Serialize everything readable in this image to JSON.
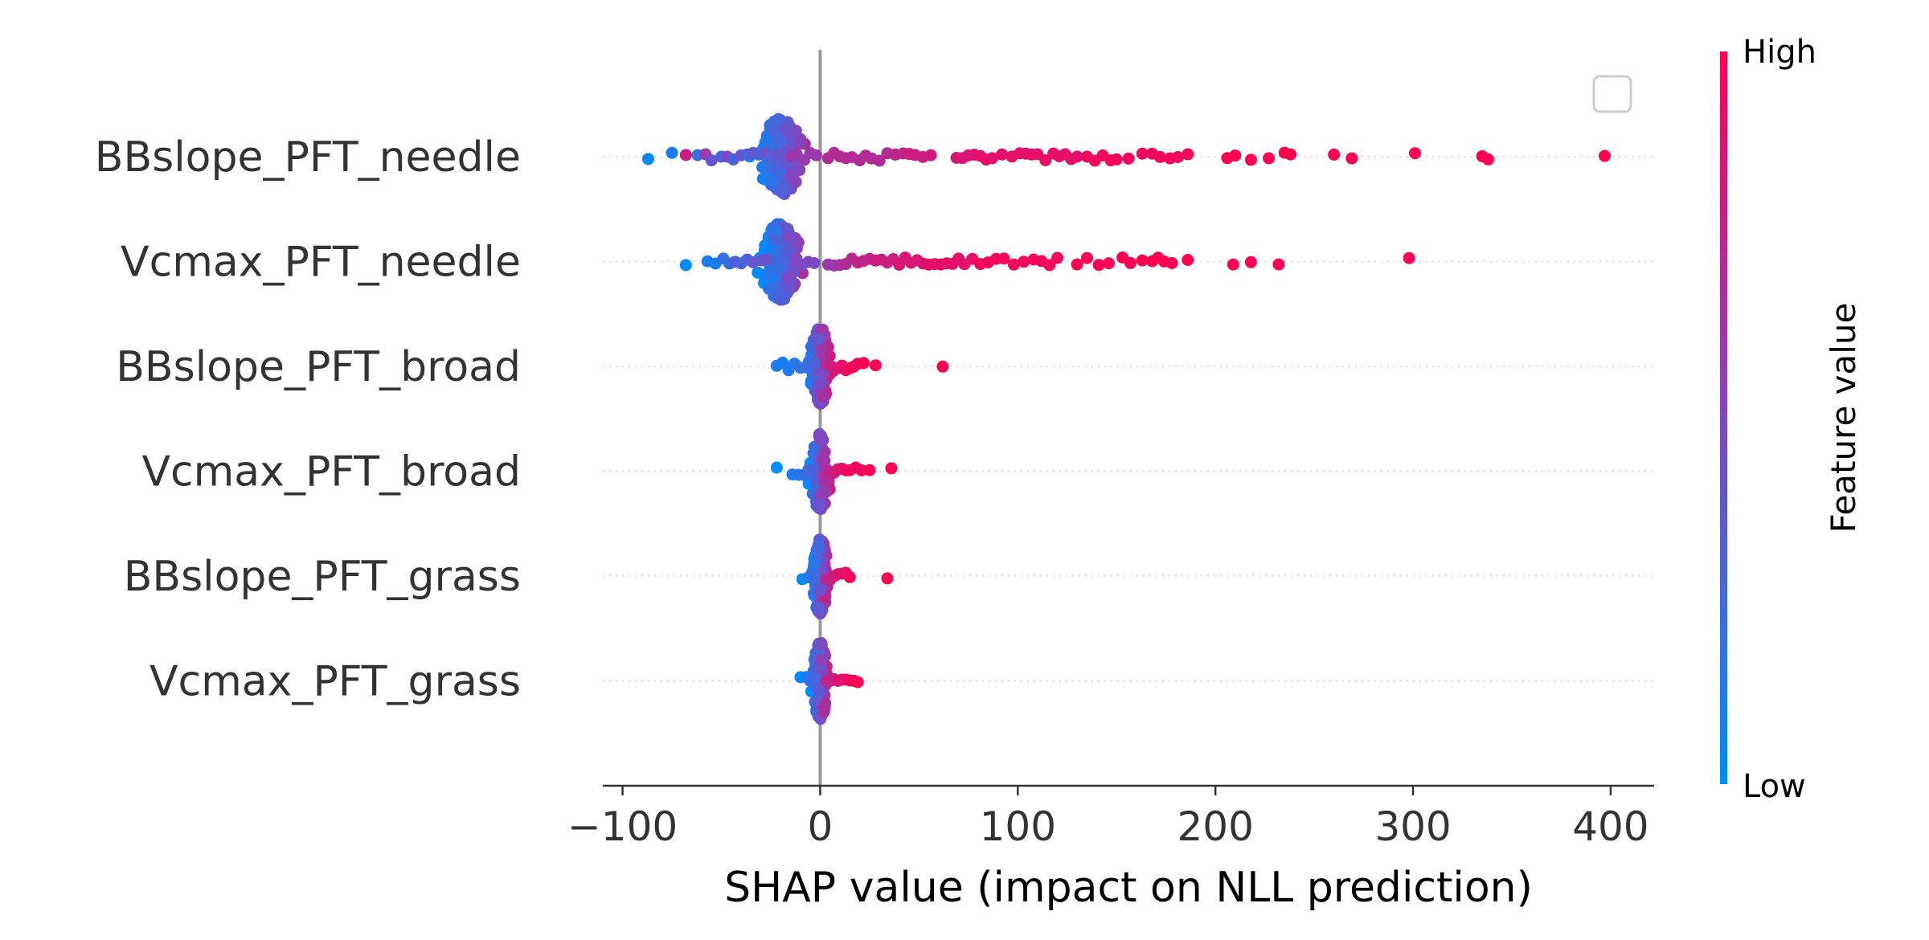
{
  "chart_data": {
    "type": "scatter",
    "subtype": "shap-beeswarm",
    "title": "",
    "xlabel": "SHAP value (impact on NLL prediction)",
    "ylabel": "",
    "xlim": [
      -110,
      422
    ],
    "xticks": [
      -100,
      0,
      100,
      200,
      300,
      400
    ],
    "xtick_labels": [
      "−100",
      "0",
      "100",
      "200",
      "300",
      "400"
    ],
    "zero_line": true,
    "grid": false,
    "legend": "top-right (empty box)",
    "colorbar": {
      "title": "Feature value",
      "high_label": "High",
      "low_label": "Low",
      "low_color": "#008bfb",
      "mid_color": "#7f47c2",
      "high_color": "#ff0052"
    },
    "features": [
      {
        "name": "BBslope_PFT_needle",
        "points": [
          [
            -87,
            0.0
          ],
          [
            -75,
            0.1
          ],
          [
            -68,
            0.8
          ],
          [
            -62,
            0.2
          ],
          [
            -58,
            0.6
          ],
          [
            -55,
            0.4
          ],
          [
            -50,
            0.3
          ],
          [
            -47,
            0.5
          ],
          [
            -44,
            0.3
          ],
          [
            -40,
            0.4
          ],
          [
            -37,
            0.3
          ],
          [
            -34,
            0.4
          ],
          [
            -31,
            0.3
          ],
          [
            -28,
            0.4
          ],
          [
            -25,
            0.3
          ],
          [
            -22,
            0.4
          ],
          [
            -15,
            0.6
          ],
          [
            -12,
            0.6
          ],
          [
            -8,
            0.6
          ],
          [
            -5,
            0.6
          ],
          [
            -2,
            0.6
          ],
          [
            4,
            0.7
          ],
          [
            7,
            0.7
          ],
          [
            10,
            0.7
          ],
          [
            13,
            0.7
          ],
          [
            16,
            0.7
          ],
          [
            20,
            0.7
          ],
          [
            23,
            0.7
          ],
          [
            26,
            0.7
          ],
          [
            30,
            0.7
          ],
          [
            34,
            0.7
          ],
          [
            38,
            0.75
          ],
          [
            42,
            0.75
          ],
          [
            45,
            0.8
          ],
          [
            48,
            0.8
          ],
          [
            52,
            0.8
          ],
          [
            56,
            0.8
          ],
          [
            69,
            0.85
          ],
          [
            72,
            0.85
          ],
          [
            75,
            0.85
          ],
          [
            78,
            0.85
          ],
          [
            81,
            0.9
          ],
          [
            84,
            0.9
          ],
          [
            87,
            0.9
          ],
          [
            92,
            0.9
          ],
          [
            97,
            0.9
          ],
          [
            101,
            0.9
          ],
          [
            104,
            0.9
          ],
          [
            107,
            0.9
          ],
          [
            110,
            0.9
          ],
          [
            114,
            0.9
          ],
          [
            118,
            0.9
          ],
          [
            121,
            0.9
          ],
          [
            124,
            0.9
          ],
          [
            127,
            0.9
          ],
          [
            130,
            0.9
          ],
          [
            135,
            0.95
          ],
          [
            139,
            0.95
          ],
          [
            143,
            0.95
          ],
          [
            147,
            0.95
          ],
          [
            150,
            0.95
          ],
          [
            156,
            0.95
          ],
          [
            163,
            0.95
          ],
          [
            168,
            0.95
          ],
          [
            172,
            0.95
          ],
          [
            177,
            0.95
          ],
          [
            181,
            0.95
          ],
          [
            186,
            0.95
          ],
          [
            206,
            1.0
          ],
          [
            210,
            1.0
          ],
          [
            218,
            1.0
          ],
          [
            227,
            1.0
          ],
          [
            235,
            1.0
          ],
          [
            238,
            1.0
          ],
          [
            260,
            1.0
          ],
          [
            269,
            1.0
          ],
          [
            301,
            1.0
          ],
          [
            335,
            1.0
          ],
          [
            338,
            1.0
          ],
          [
            397,
            1.0
          ]
        ]
      },
      {
        "name": "Vcmax_PFT_needle",
        "points": [
          [
            -68,
            0.0
          ],
          [
            -57,
            0.1
          ],
          [
            -53,
            0.1
          ],
          [
            -49,
            0.2
          ],
          [
            -46,
            0.2
          ],
          [
            -43,
            0.3
          ],
          [
            -40,
            0.3
          ],
          [
            -37,
            0.3
          ],
          [
            -34,
            0.4
          ],
          [
            -30,
            0.4
          ],
          [
            -27,
            0.4
          ],
          [
            -12,
            0.5
          ],
          [
            -9,
            0.5
          ],
          [
            -6,
            0.5
          ],
          [
            -3,
            0.5
          ],
          [
            4,
            0.6
          ],
          [
            7,
            0.6
          ],
          [
            10,
            0.65
          ],
          [
            13,
            0.7
          ],
          [
            16,
            0.7
          ],
          [
            19,
            0.75
          ],
          [
            22,
            0.75
          ],
          [
            25,
            0.75
          ],
          [
            28,
            0.8
          ],
          [
            31,
            0.8
          ],
          [
            34,
            0.8
          ],
          [
            37,
            0.8
          ],
          [
            40,
            0.85
          ],
          [
            43,
            0.85
          ],
          [
            46,
            0.85
          ],
          [
            49,
            0.85
          ],
          [
            52,
            0.85
          ],
          [
            55,
            0.9
          ],
          [
            58,
            0.9
          ],
          [
            61,
            0.9
          ],
          [
            64,
            0.9
          ],
          [
            67,
            0.9
          ],
          [
            70,
            0.9
          ],
          [
            73,
            0.9
          ],
          [
            77,
            0.9
          ],
          [
            81,
            0.95
          ],
          [
            85,
            0.95
          ],
          [
            89,
            0.95
          ],
          [
            93,
            0.95
          ],
          [
            98,
            0.95
          ],
          [
            103,
            0.95
          ],
          [
            108,
            0.95
          ],
          [
            112,
            0.95
          ],
          [
            116,
            0.95
          ],
          [
            120,
            0.95
          ],
          [
            130,
            1.0
          ],
          [
            135,
            1.0
          ],
          [
            141,
            1.0
          ],
          [
            146,
            1.0
          ],
          [
            153,
            1.0
          ],
          [
            157,
            1.0
          ],
          [
            163,
            1.0
          ],
          [
            168,
            1.0
          ],
          [
            171,
            1.0
          ],
          [
            174,
            1.0
          ],
          [
            178,
            1.0
          ],
          [
            186,
            1.0
          ],
          [
            209,
            1.0
          ],
          [
            218,
            1.0
          ],
          [
            232,
            1.0
          ],
          [
            298,
            1.0
          ]
        ]
      },
      {
        "name": "BBslope_PFT_broad",
        "points": [
          [
            -22,
            0.1
          ],
          [
            -19,
            0.1
          ],
          [
            -16,
            0.1
          ],
          [
            -13,
            0.15
          ],
          [
            -10,
            0.2
          ],
          [
            -7,
            0.2
          ],
          [
            -5,
            0.25
          ],
          [
            -3,
            0.3
          ],
          [
            3,
            0.7
          ],
          [
            5,
            0.75
          ],
          [
            7,
            0.8
          ],
          [
            9,
            0.85
          ],
          [
            11,
            0.9
          ],
          [
            13,
            0.9
          ],
          [
            15,
            0.95
          ],
          [
            17,
            0.95
          ],
          [
            19,
            0.95
          ],
          [
            22,
            1.0
          ],
          [
            28,
            1.0
          ],
          [
            62,
            1.0
          ]
        ]
      },
      {
        "name": "Vcmax_PFT_broad",
        "points": [
          [
            -22,
            0.0
          ],
          [
            -14,
            0.1
          ],
          [
            -11,
            0.15
          ],
          [
            -8,
            0.2
          ],
          [
            -6,
            0.25
          ],
          [
            -4,
            0.3
          ],
          [
            3,
            0.7
          ],
          [
            5,
            0.75
          ],
          [
            7,
            0.8
          ],
          [
            9,
            0.85
          ],
          [
            11,
            0.9
          ],
          [
            13,
            0.9
          ],
          [
            15,
            0.95
          ],
          [
            18,
            0.95
          ],
          [
            21,
            0.95
          ],
          [
            25,
            1.0
          ],
          [
            36,
            1.0
          ]
        ]
      },
      {
        "name": "BBslope_PFT_grass",
        "points": [
          [
            -9,
            0.0
          ],
          [
            -6,
            0.1
          ],
          [
            -4,
            0.2
          ],
          [
            -3,
            0.25
          ],
          [
            3,
            0.7
          ],
          [
            5,
            0.75
          ],
          [
            7,
            0.8
          ],
          [
            9,
            0.85
          ],
          [
            11,
            0.9
          ],
          [
            13,
            0.9
          ],
          [
            15,
            0.95
          ],
          [
            34,
            1.0
          ]
        ]
      },
      {
        "name": "Vcmax_PFT_grass",
        "points": [
          [
            -10,
            0.0
          ],
          [
            -7,
            0.1
          ],
          [
            -5,
            0.2
          ],
          [
            -3,
            0.25
          ],
          [
            3,
            0.7
          ],
          [
            5,
            0.75
          ],
          [
            7,
            0.8
          ],
          [
            9,
            0.85
          ],
          [
            11,
            0.9
          ],
          [
            13,
            0.9
          ],
          [
            15,
            0.95
          ],
          [
            17,
            0.95
          ],
          [
            19,
            1.0
          ]
        ]
      }
    ],
    "bulk_points": [
      {
        "feature": "BBslope_PFT_needle",
        "center": -20,
        "spread": 9,
        "count": 220,
        "value_low": 0.1,
        "value_high": 0.55
      },
      {
        "feature": "Vcmax_PFT_needle",
        "center": -20,
        "spread": 8,
        "count": 220,
        "value_low": 0.05,
        "value_high": 0.55
      },
      {
        "feature": "BBslope_PFT_broad",
        "center": 0,
        "spread": 4,
        "count": 150,
        "value_low": 0.2,
        "value_high": 0.8
      },
      {
        "feature": "Vcmax_PFT_broad",
        "center": 0,
        "spread": 4,
        "count": 150,
        "value_low": 0.15,
        "value_high": 0.8
      },
      {
        "feature": "BBslope_PFT_grass",
        "center": 0,
        "spread": 3,
        "count": 140,
        "value_low": 0.1,
        "value_high": 0.75
      },
      {
        "feature": "Vcmax_PFT_grass",
        "center": 0,
        "spread": 3,
        "count": 140,
        "value_low": 0.15,
        "value_high": 0.75
      }
    ]
  }
}
